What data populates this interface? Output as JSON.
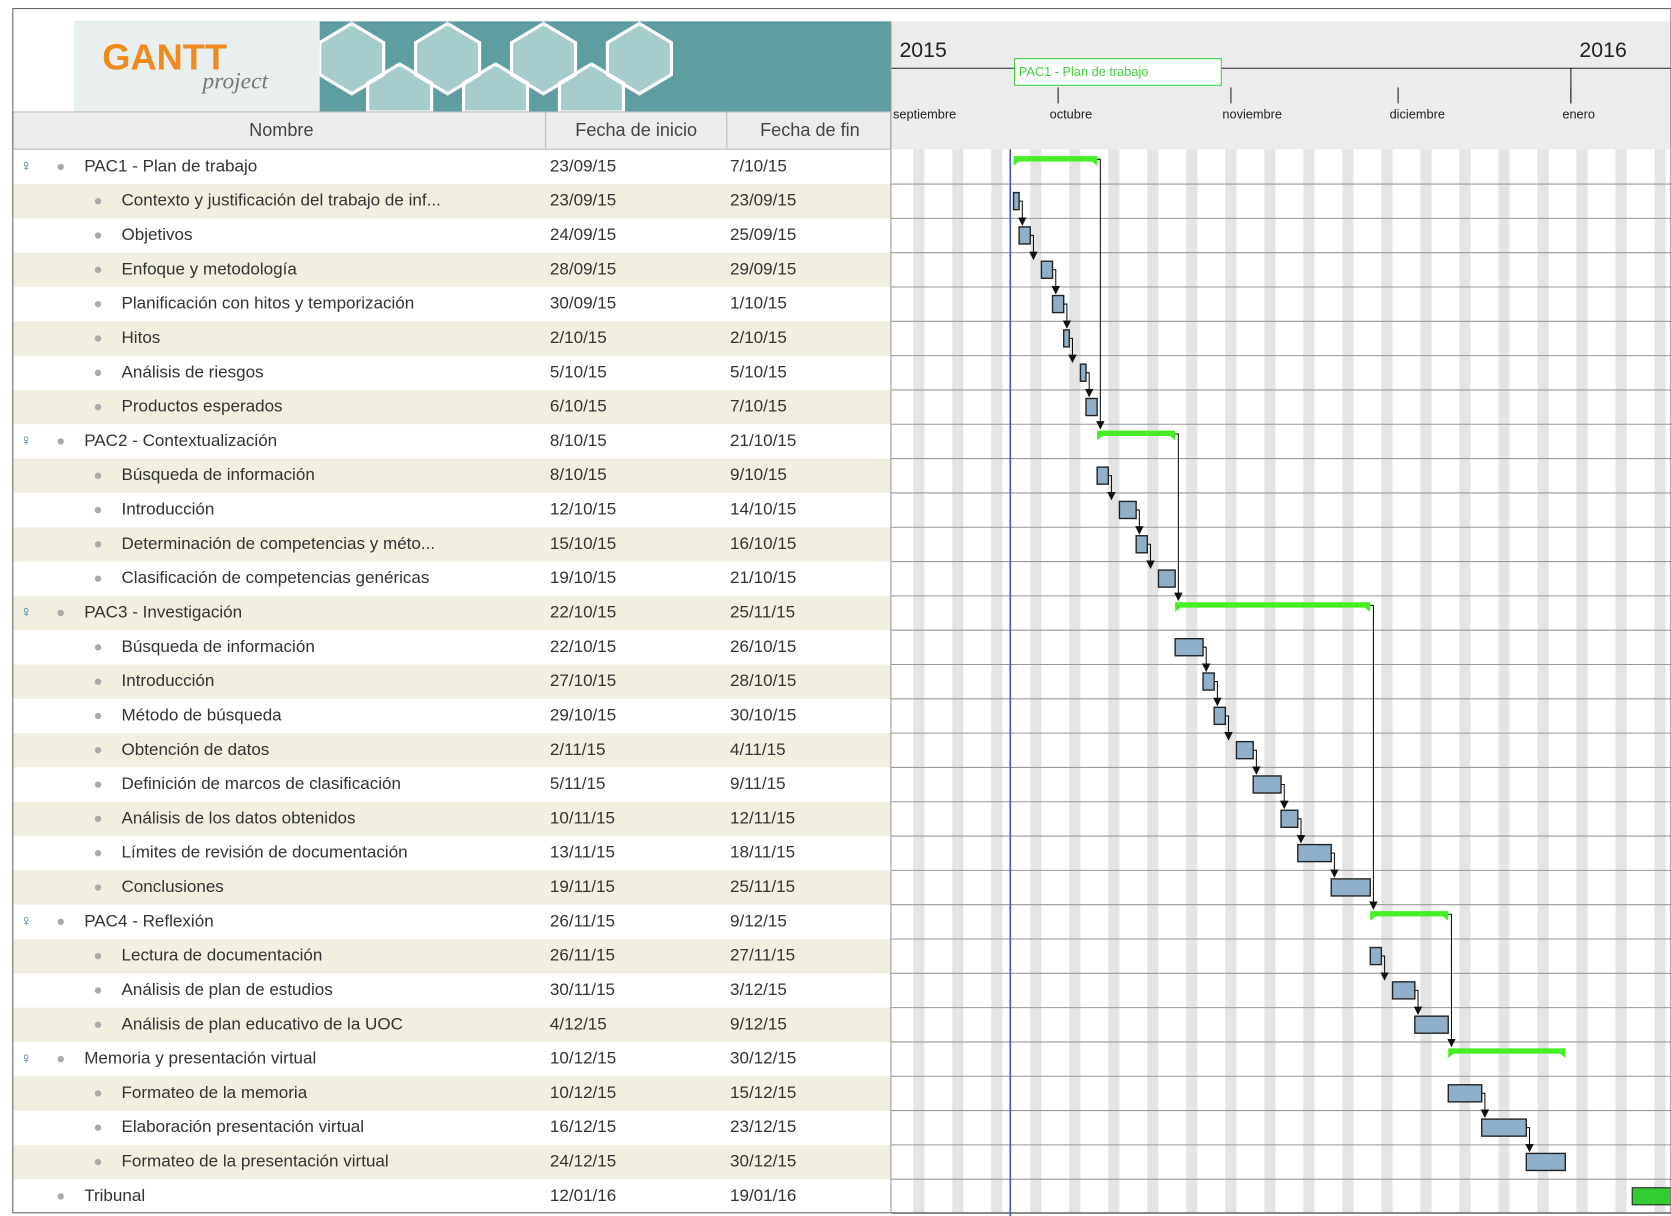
{
  "logo": {
    "title": "GANTT",
    "subtitle": "project"
  },
  "columns": [
    "Nombre",
    "Fecha de inicio",
    "Fecha de fin"
  ],
  "timeline": {
    "years": [
      "2015",
      "2016"
    ],
    "months": [
      "septiembre",
      "octubre",
      "noviembre",
      "diciembre",
      "enero"
    ],
    "tooltip": "PAC1 - Plan de trabajo"
  },
  "rows": [
    {
      "name": "PAC1 - Plan de trabajo",
      "start": "23/09/15",
      "end": "7/10/15",
      "tasks": [
        {
          "name": "Contexto y justificación del trabajo de inf...",
          "start": "23/09/15",
          "end": "23/09/15"
        },
        {
          "name": "Objetivos",
          "start": "24/09/15",
          "end": "25/09/15"
        },
        {
          "name": "Enfoque y metodología",
          "start": "28/09/15",
          "end": "29/09/15"
        },
        {
          "name": "Planificación con hitos y temporización",
          "start": "30/09/15",
          "end": "1/10/15"
        },
        {
          "name": "Hitos",
          "start": "2/10/15",
          "end": "2/10/15"
        },
        {
          "name": "Análisis de riesgos",
          "start": "5/10/15",
          "end": "5/10/15"
        },
        {
          "name": "Productos esperados",
          "start": "6/10/15",
          "end": "7/10/15"
        }
      ]
    },
    {
      "name": "PAC2 - Contextualización",
      "start": "8/10/15",
      "end": "21/10/15",
      "tasks": [
        {
          "name": "Búsqueda de información",
          "start": "8/10/15",
          "end": "9/10/15"
        },
        {
          "name": "Introducción",
          "start": "12/10/15",
          "end": "14/10/15"
        },
        {
          "name": "Determinación de competencias y méto...",
          "start": "15/10/15",
          "end": "16/10/15"
        },
        {
          "name": "Clasificación de competencias genéricas",
          "start": "19/10/15",
          "end": "21/10/15"
        }
      ]
    },
    {
      "name": "PAC3 - Investigación",
      "start": "22/10/15",
      "end": "25/11/15",
      "tasks": [
        {
          "name": "Búsqueda de información",
          "start": "22/10/15",
          "end": "26/10/15"
        },
        {
          "name": "Introducción",
          "start": "27/10/15",
          "end": "28/10/15"
        },
        {
          "name": "Método de búsqueda",
          "start": "29/10/15",
          "end": "30/10/15"
        },
        {
          "name": "Obtención de datos",
          "start": "2/11/15",
          "end": "4/11/15"
        },
        {
          "name": "Definición de marcos de clasificación",
          "start": "5/11/15",
          "end": "9/11/15"
        },
        {
          "name": "Análisis de los datos obtenidos",
          "start": "10/11/15",
          "end": "12/11/15"
        },
        {
          "name": "Límites de revisión de documentación",
          "start": "13/11/15",
          "end": "18/11/15"
        },
        {
          "name": "Conclusiones",
          "start": "19/11/15",
          "end": "25/11/15"
        }
      ]
    },
    {
      "name": "PAC4 - Reflexión",
      "start": "26/11/15",
      "end": "9/12/15",
      "tasks": [
        {
          "name": "Lectura de documentación",
          "start": "26/11/15",
          "end": "27/11/15"
        },
        {
          "name": "Análisis de plan de estudios",
          "start": "30/11/15",
          "end": "3/12/15"
        },
        {
          "name": "Análisis de plan educativo de la UOC",
          "start": "4/12/15",
          "end": "9/12/15"
        }
      ]
    },
    {
      "name": "Memoria y presentación virtual",
      "start": "10/12/15",
      "end": "30/12/15",
      "tasks": [
        {
          "name": "Formateo de la memoria",
          "start": "10/12/15",
          "end": "15/12/15"
        },
        {
          "name": "Elaboración presentación virtual",
          "start": "16/12/15",
          "end": "23/12/15"
        },
        {
          "name": "Formateo de la presentación virtual",
          "start": "24/12/15",
          "end": "30/12/15"
        }
      ]
    },
    {
      "name": "Tribunal",
      "start": "12/01/16",
      "end": "19/01/16"
    }
  ]
}
